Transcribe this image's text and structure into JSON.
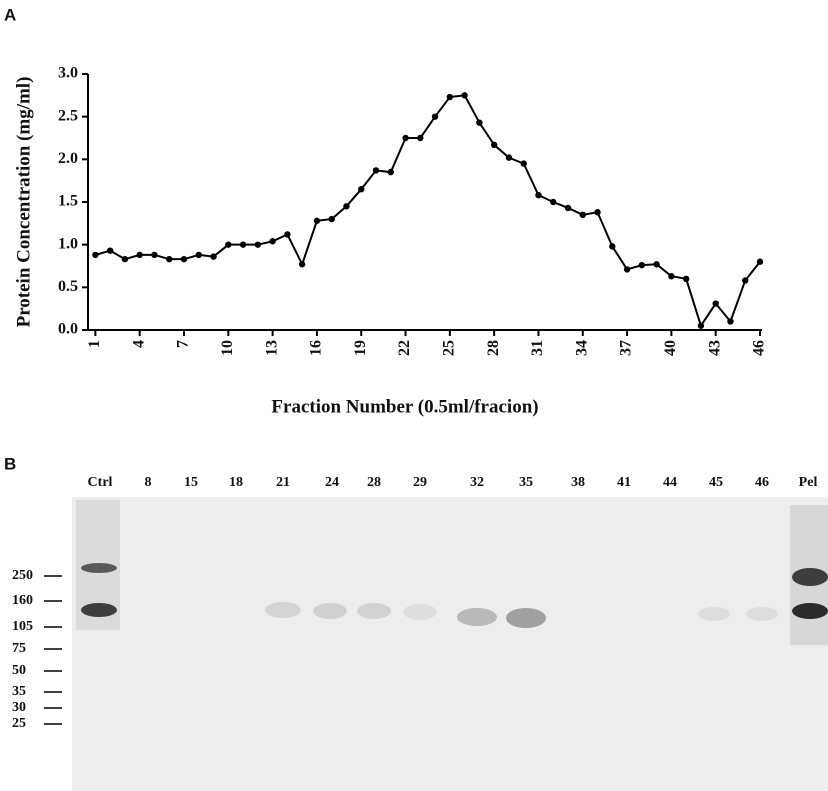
{
  "chart_data": {
    "type": "line",
    "panel_label": "A",
    "x_label": "Fraction Number (0.5ml/fracion)",
    "y_label": "Protein  Concentration (mg/ml)",
    "x": [
      1,
      2,
      3,
      4,
      5,
      6,
      7,
      8,
      9,
      10,
      11,
      12,
      13,
      14,
      15,
      16,
      17,
      18,
      19,
      20,
      21,
      22,
      23,
      24,
      25,
      26,
      27,
      28,
      29,
      30,
      31,
      32,
      33,
      34,
      35,
      36,
      37,
      38,
      39,
      40,
      41,
      42,
      43,
      44,
      45,
      46
    ],
    "values": [
      0.88,
      0.93,
      0.83,
      0.88,
      0.88,
      0.83,
      0.83,
      0.88,
      0.86,
      1.0,
      1.0,
      1.0,
      1.04,
      1.12,
      0.77,
      1.28,
      1.3,
      1.45,
      1.65,
      1.87,
      1.85,
      2.25,
      2.25,
      2.5,
      2.73,
      2.75,
      2.43,
      2.17,
      2.02,
      1.95,
      1.58,
      1.5,
      1.43,
      1.35,
      1.38,
      0.98,
      0.71,
      0.76,
      0.77,
      0.63,
      0.6,
      0.05,
      0.31,
      0.1,
      0.58,
      0.8
    ],
    "color": "#000000",
    "xlim": [
      0.5,
      46
    ],
    "xticks": [
      1,
      4,
      7,
      10,
      13,
      16,
      19,
      22,
      25,
      28,
      31,
      34,
      37,
      40,
      43,
      46
    ],
    "ylim": [
      0,
      3
    ],
    "yticks": [
      {
        "value": 0,
        "label": "0.0"
      },
      0.5,
      {
        "value": 1,
        "label": "1.0"
      },
      1.5,
      {
        "value": 2,
        "label": "2.0"
      },
      2.5,
      {
        "value": 3,
        "label": "3.0"
      }
    ]
  },
  "blot": {
    "panel_label": "B",
    "lanes": [
      "Ctrl",
      "8",
      "15",
      "18",
      "21",
      "24",
      "28",
      "29",
      "32",
      "35",
      "38",
      "41",
      "44",
      "45",
      "46",
      "Pel"
    ],
    "markers": [
      "250",
      "160",
      "105",
      "75",
      "50",
      "35",
      "30",
      "25"
    ]
  }
}
